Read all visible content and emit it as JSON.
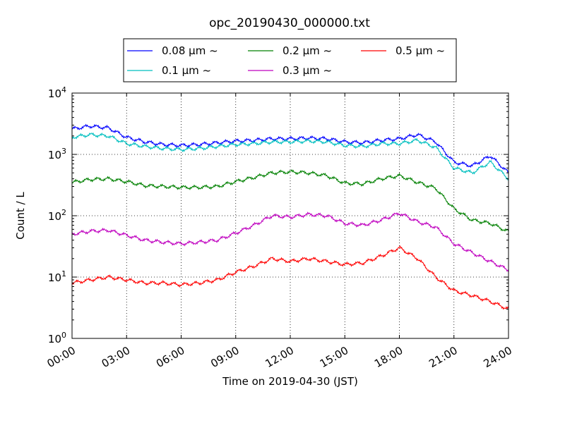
{
  "chart_data": {
    "type": "line",
    "title": "opc_20190430_000000.txt",
    "xlabel": "Time on 2019-04-30 (JST)",
    "ylabel": "Count / L",
    "x_unit": "hours (JST)",
    "xlim": [
      0,
      24
    ],
    "ylim": [
      1,
      10000
    ],
    "yscale": "log",
    "grid": true,
    "legend_placement": "top-center (above plot)",
    "x_ticks": [
      {
        "value": 0,
        "label": "00:00"
      },
      {
        "value": 3,
        "label": "03:00"
      },
      {
        "value": 6,
        "label": "06:00"
      },
      {
        "value": 9,
        "label": "09:00"
      },
      {
        "value": 12,
        "label": "12:00"
      },
      {
        "value": 15,
        "label": "15:00"
      },
      {
        "value": 18,
        "label": "18:00"
      },
      {
        "value": 21,
        "label": "21:00"
      },
      {
        "value": 24,
        "label": "24:00"
      }
    ],
    "y_ticks": [
      {
        "value": 1,
        "base": "10",
        "exp": "0"
      },
      {
        "value": 10,
        "base": "10",
        "exp": "1"
      },
      {
        "value": 100,
        "base": "10",
        "exp": "2"
      },
      {
        "value": 1000,
        "base": "10",
        "exp": "3"
      },
      {
        "value": 10000,
        "base": "10",
        "exp": "4"
      }
    ],
    "x": [
      0,
      1,
      2,
      3,
      4,
      5,
      6,
      7,
      8,
      9,
      10,
      11,
      12,
      13,
      14,
      15,
      16,
      17,
      18,
      19,
      20,
      21,
      22,
      23,
      24
    ],
    "series": [
      {
        "name": "0.08 μm ~",
        "color": "#0000ff",
        "values": [
          2600,
          2900,
          2700,
          1900,
          1600,
          1450,
          1400,
          1450,
          1550,
          1650,
          1700,
          1800,
          1800,
          1850,
          1800,
          1600,
          1550,
          1700,
          1800,
          2100,
          1600,
          750,
          650,
          950,
          500
        ]
      },
      {
        "name": "0.1 μm ~",
        "color": "#00bfbf",
        "values": [
          1900,
          2100,
          2000,
          1500,
          1350,
          1250,
          1200,
          1250,
          1350,
          1450,
          1500,
          1600,
          1600,
          1650,
          1600,
          1400,
          1350,
          1500,
          1500,
          1700,
          1300,
          600,
          500,
          750,
          400
        ]
      },
      {
        "name": "0.2 μm ~",
        "color": "#008000",
        "values": [
          350,
          390,
          400,
          360,
          310,
          300,
          290,
          290,
          300,
          360,
          420,
          500,
          520,
          500,
          450,
          340,
          330,
          400,
          450,
          350,
          280,
          130,
          85,
          75,
          55
        ]
      },
      {
        "name": "0.3 μm ~",
        "color": "#bf00bf",
        "values": [
          50,
          56,
          58,
          48,
          40,
          37,
          35,
          37,
          40,
          52,
          70,
          100,
          95,
          105,
          100,
          75,
          70,
          85,
          110,
          80,
          65,
          35,
          25,
          18,
          13
        ]
      },
      {
        "name": "0.5 μm ~",
        "color": "#ff0000",
        "values": [
          8,
          9,
          10,
          9,
          8,
          8,
          7.5,
          8,
          9,
          12,
          15,
          20,
          18,
          20,
          18,
          16,
          17,
          22,
          30,
          20,
          10,
          6,
          5,
          4,
          3
        ]
      }
    ]
  }
}
